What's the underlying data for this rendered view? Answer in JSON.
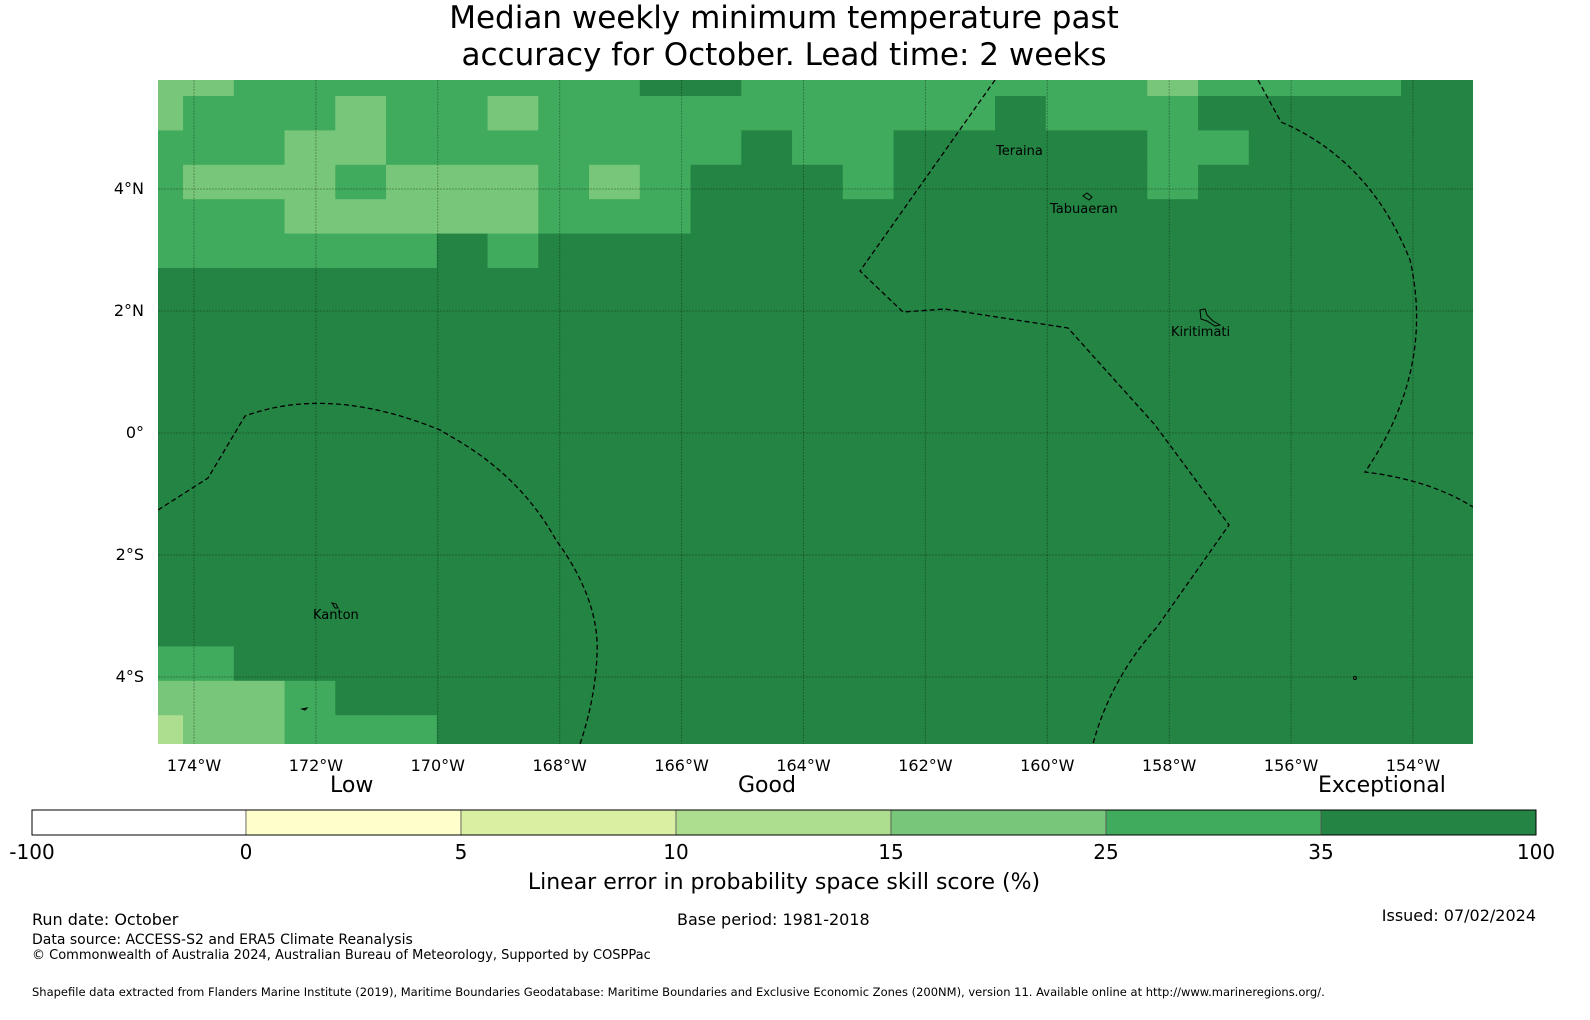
{
  "title_line1": "Median weekly minimum temperature past",
  "title_line2": "accuracy for October. Lead time: 2 weeks",
  "map": {
    "lat_ticks": [
      "4°N",
      "2°N",
      "0°",
      "2°S",
      "4°S"
    ],
    "lon_ticks": [
      "174°W",
      "172°W",
      "170°W",
      "168°W",
      "166°W",
      "164°W",
      "162°W",
      "160°W",
      "158°W",
      "156°W",
      "154°W"
    ],
    "places": [
      "Teraina",
      "Tabuaeran",
      "Kiritimati",
      "Kanton"
    ],
    "palette": {
      "P": "#addd8e",
      "L": "#78c679",
      "M": "#41ab5d",
      "D": "#238443"
    },
    "grid": [
      "LLMMMMMMMMDDMMMMMMMMLMMMMDD",
      "LMMMLMMLMMMMMMMMMDMMMDDDDDD",
      "MMMLLMMMMMMMDMMDDDDDMMDDDDD",
      "MLLLMLLLMLMDDDMDDDDDMDDDDDD",
      "MMMLLLLLMMMDDDDDDDDDDDDDDDD",
      "MMMMMMDMDDDDDDDDDDDDDDDDDDD",
      "DDDDDDDDDDDDDDDDDDDDDDDDDDD",
      "DDDDDDDDDDDDDDDDDDDDDDDDDDD",
      "DDDDDDDDDDDDDDDDDDDDDDDDDDD",
      "DDDDDDDDDDDDDDDDDDDDDDDDDDD",
      "DDDDDDDDDDDDDDDDDDDDDDDDDDD",
      "DDDDDDDDDDDDDDDDDDDDDDDDDDD",
      "DDDDDDDDDDDDDDDDDDDDDDDDDDD",
      "DDDDDDDDDDDDDDDDDDDDDDDDDDD",
      "DDDDDDDDDDDDDDDDDDDDDDDDDDD",
      "DDDDDDDDDDDDDDDDDDDDDDDDDDD",
      "DDDDDDDDDDDDDDDDDDDDDDDDDDD",
      "MMDDDDDDDDDDDDDDDDDDDDDDDDD",
      "LLLMDDDDDDDDDDDDDDDDDDDDDDD",
      "PLLMMMDDDDDDDDDDDDDDDDDDDDD"
    ]
  },
  "colorbar": {
    "categories": [
      "Low",
      "Good",
      "Exceptional"
    ],
    "tick_labels": [
      "-100",
      "0",
      "5",
      "10",
      "15",
      "25",
      "35",
      "100"
    ],
    "colors": [
      "#ffffff",
      "#ffffcc",
      "#d9f0a3",
      "#addd8e",
      "#78c679",
      "#41ab5d",
      "#238443"
    ],
    "label": "Linear error in probability space skill score (%)"
  },
  "footer": {
    "run_date": "Run date: October",
    "base_period": "Base period: 1981-2018",
    "issued": "Issued: 07/02/2024",
    "data_source": "Data source: ACCESS-S2 and ERA5 Climate Reanalysis",
    "copyright": "© Commonwealth of Australia 2024, Australian Bureau of Meteorology, Supported by COSPPac",
    "shapefile": "Shapefile data extracted from Flanders Marine Institute (2019), Maritime Boundaries Geodatabase: Maritime Boundaries and Exclusive Economic Zones (200NM), version 11. Available online at http://www.marineregions.org/."
  }
}
